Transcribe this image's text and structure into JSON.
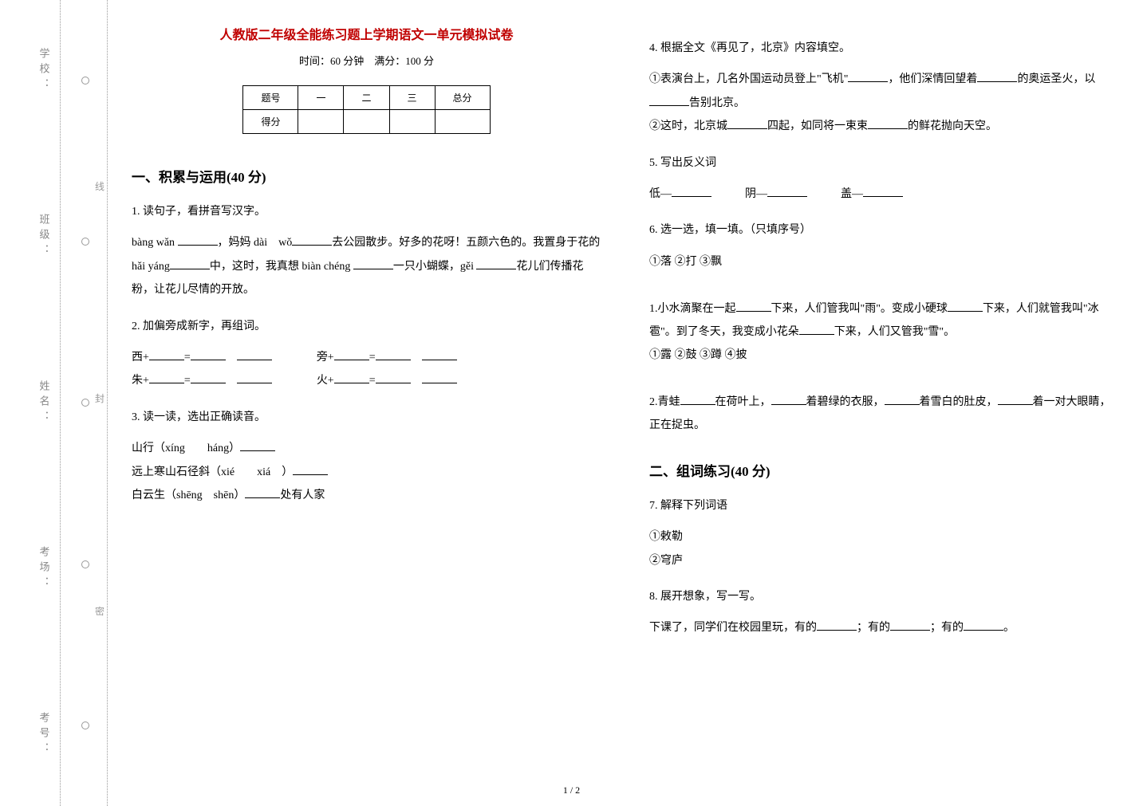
{
  "colors": {
    "title": "#c00000",
    "text": "#000000",
    "faint": "#999999",
    "background": "#ffffff",
    "border_dotted": "#999999"
  },
  "typography": {
    "body_family": "SimSun",
    "body_size_pt": 10.5,
    "title_size_pt": 12,
    "title_weight": "bold",
    "section_size_pt": 13,
    "section_weight": "bold",
    "line_height": 2.1
  },
  "binding": {
    "labels": [
      "考号：",
      "考场：",
      "姓名：",
      "班级：",
      "学校："
    ],
    "seal_chars": [
      "线",
      "封",
      "密"
    ]
  },
  "header": {
    "title": "人教版二年级全能练习题上学期语文一单元模拟试卷",
    "subtitle": "时间：60 分钟　满分：100 分"
  },
  "score_table": {
    "columns": [
      "题号",
      "一",
      "二",
      "三",
      "总分"
    ],
    "rows": [
      [
        "得分",
        "",
        "",
        "",
        ""
      ]
    ]
  },
  "section1": {
    "heading": "一、积累与运用(40 分)",
    "q1": {
      "num": "1. ",
      "stem": "读句子，看拼音写汉字。",
      "p1a": "bàng wǎn ",
      "p1b": "，妈妈 dài　wǒ",
      "p1c": "去公园散步。好多的花呀！五颜六色的。我置身于花的 hǎi yáng",
      "p1d": "中，这时，我真想 biàn chéng ",
      "p1e": "一只小蝴蝶，gěi ",
      "p1f": "花儿们传播花粉，让花儿尽情的开放。"
    },
    "q2": {
      "num": "2. ",
      "stem": "加偏旁成新字，再组词。",
      "a": "西+",
      "b": "旁+",
      "c": "朱+",
      "d": "火+",
      "eq": "="
    },
    "q3": {
      "num": "3. ",
      "stem": "读一读，选出正确读音。",
      "l1a": "山行（xíng　　háng）",
      "l2a": "远上寒山石径斜（xié　　xiá　）",
      "l3a": "白云生（shēng　shēn）",
      "l3b": "处有人家"
    },
    "q4": {
      "num": "4. ",
      "stem": "根据全文《再见了，北京》内容填空。",
      "p1a": "①表演台上，几名外国运动员登上\"飞机\"",
      "p1b": "，他们深情回望着",
      "p1c": "的奥运圣火，以",
      "p1d": "告别北京。",
      "p2a": "②这时，北京城",
      "p2b": "四起，如同将一束束",
      "p2c": "的鲜花抛向天空。"
    },
    "q5": {
      "num": "5. ",
      "stem": "写出反义词",
      "a": "低—",
      "b": "阴—",
      "c": "盖—"
    },
    "q6": {
      "num": "6. ",
      "stem": "选一选，填一填。（只填序号）",
      "opts1": "①落 ②打 ③飘",
      "p1a": "1.小水滴聚在一起",
      "p1b": "下来，人们管我叫\"雨\"。变成小硬球",
      "p1c": "下来，人们就管我叫\"冰雹\"。到了冬天，我变成小花朵",
      "p1d": "下来，人们又管我\"雪\"。",
      "opts2": "①露 ②鼓 ③蹲 ④披",
      "p2a": "2.青蛙",
      "p2b": "在荷叶上，",
      "p2c": "着碧绿的衣服，",
      "p2d": "着雪白的肚皮，",
      "p2e": "着一对大眼睛，正在捉虫。"
    }
  },
  "section2": {
    "heading": "二、组词练习(40 分)",
    "q7": {
      "num": "7. ",
      "stem": "解释下列词语",
      "a": "①敕勒",
      "b": "②穹庐"
    },
    "q8": {
      "num": "8. ",
      "stem": "展开想象，写一写。",
      "p1a": "下课了，同学们在校园里玩，有的",
      "p1b": "；有的",
      "p1c": "；有的",
      "p1d": "。"
    }
  },
  "pagenum": "1 / 2"
}
